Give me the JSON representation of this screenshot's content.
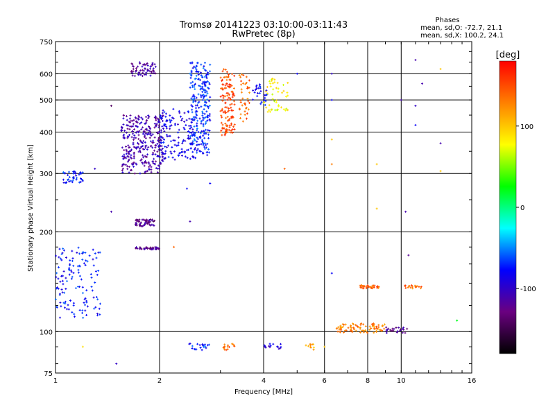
{
  "chart_data": {
    "type": "scatter",
    "title": "Tromsø 20141223 03:10:00-03:11:43",
    "subtitle": "RwPretec (8p)",
    "xlabel": "Frequency [MHz]",
    "ylabel": "Stationary phase Virtual Height [km]",
    "x_scale": "log",
    "y_scale": "log",
    "xlim": [
      1,
      16
    ],
    "ylim": [
      75,
      750
    ],
    "x_ticks": [
      1,
      2,
      4,
      6,
      8,
      10,
      16
    ],
    "y_ticks": [
      75,
      100,
      200,
      300,
      400,
      500,
      600,
      750
    ],
    "grid": true,
    "legend": {
      "title": "Phases",
      "lines": [
        "mean, sd,O: -72.7, 21.1",
        "mean, sd,X: 100.2, 24.1"
      ],
      "placement": "top-right"
    },
    "colorbar": {
      "label": "[deg]",
      "range": [
        -180,
        180
      ],
      "ticks": [
        100,
        0,
        -100
      ],
      "colors": [
        "#000000",
        "#6a0080",
        "#0000ff",
        "#00ffff",
        "#00ff00",
        "#ffff00",
        "#ff8000",
        "#ff0000"
      ]
    },
    "clusters": [
      {
        "x": [
          1.55,
          2.05
        ],
        "y": [
          300,
          450
        ],
        "n": 320,
        "phase": -110
      },
      {
        "x": [
          1.65,
          1.95
        ],
        "y": [
          590,
          650
        ],
        "n": 60,
        "phase": -115
      },
      {
        "x": [
          2.0,
          2.55
        ],
        "y": [
          330,
          470
        ],
        "n": 140,
        "phase": -85
      },
      {
        "x": [
          2.45,
          2.8
        ],
        "y": [
          340,
          650
        ],
        "n": 240,
        "phase": -70
      },
      {
        "x": [
          3.0,
          3.3
        ],
        "y": [
          390,
          620
        ],
        "n": 130,
        "phase": 150
      },
      {
        "x": [
          3.4,
          3.65
        ],
        "y": [
          430,
          600
        ],
        "n": 40,
        "phase": 140
      },
      {
        "x": [
          3.7,
          4.1
        ],
        "y": [
          480,
          560
        ],
        "n": 30,
        "phase": -80
      },
      {
        "x": [
          4.0,
          4.7
        ],
        "y": [
          460,
          580
        ],
        "n": 50,
        "phase": 80
      },
      {
        "x": [
          1.05,
          1.2
        ],
        "y": [
          280,
          305
        ],
        "n": 40,
        "phase": -75
      },
      {
        "x": [
          1.0,
          1.35
        ],
        "y": [
          110,
          180
        ],
        "n": 130,
        "phase": -75
      },
      {
        "x": [
          1.7,
          1.95
        ],
        "y": [
          208,
          218
        ],
        "n": 60,
        "phase": -125
      },
      {
        "x": [
          1.7,
          2.0
        ],
        "y": [
          177,
          180
        ],
        "n": 40,
        "phase": -120
      },
      {
        "x": [
          6.5,
          9.0
        ],
        "y": [
          99,
          106
        ],
        "n": 80,
        "phase": 130
      },
      {
        "x": [
          7.6,
          8.7
        ],
        "y": [
          135,
          138
        ],
        "n": 35,
        "phase": 140
      },
      {
        "x": [
          10.2,
          11.5
        ],
        "y": [
          135,
          138
        ],
        "n": 20,
        "phase": 140
      },
      {
        "x": [
          2.4,
          2.8
        ],
        "y": [
          88,
          92
        ],
        "n": 20,
        "phase": -70
      },
      {
        "x": [
          3.0,
          3.3
        ],
        "y": [
          88,
          92
        ],
        "n": 15,
        "phase": 140
      },
      {
        "x": [
          4.0,
          4.5
        ],
        "y": [
          88,
          92
        ],
        "n": 15,
        "phase": -90
      },
      {
        "x": [
          5.3,
          5.6
        ],
        "y": [
          88,
          92
        ],
        "n": 10,
        "phase": 110
      },
      {
        "x": [
          9.0,
          10.5
        ],
        "y": [
          99,
          103
        ],
        "n": 25,
        "phase": -120
      }
    ],
    "points": [
      {
        "x": 1.45,
        "y": 480,
        "phase": -140
      },
      {
        "x": 1.45,
        "y": 230,
        "phase": -110
      },
      {
        "x": 1.3,
        "y": 310,
        "phase": -100
      },
      {
        "x": 1.2,
        "y": 90,
        "phase": 90
      },
      {
        "x": 1.5,
        "y": 80,
        "phase": -100
      },
      {
        "x": 2.8,
        "y": 280,
        "phase": -80
      },
      {
        "x": 2.4,
        "y": 270,
        "phase": -80
      },
      {
        "x": 2.45,
        "y": 215,
        "phase": -110
      },
      {
        "x": 2.2,
        "y": 180,
        "phase": 140
      },
      {
        "x": 4.6,
        "y": 310,
        "phase": 140
      },
      {
        "x": 6.3,
        "y": 600,
        "phase": -100
      },
      {
        "x": 6.3,
        "y": 500,
        "phase": -80
      },
      {
        "x": 6.3,
        "y": 380,
        "phase": 100
      },
      {
        "x": 6.3,
        "y": 320,
        "phase": 130
      },
      {
        "x": 6.3,
        "y": 150,
        "phase": -80
      },
      {
        "x": 8.5,
        "y": 320,
        "phase": 100
      },
      {
        "x": 8.5,
        "y": 235,
        "phase": 100
      },
      {
        "x": 10.3,
        "y": 230,
        "phase": -110
      },
      {
        "x": 10.0,
        "y": 500,
        "phase": -110
      },
      {
        "x": 11.0,
        "y": 660,
        "phase": -110
      },
      {
        "x": 11.0,
        "y": 480,
        "phase": -100
      },
      {
        "x": 11.5,
        "y": 560,
        "phase": -110
      },
      {
        "x": 13.0,
        "y": 620,
        "phase": 100
      },
      {
        "x": 13.0,
        "y": 370,
        "phase": -110
      },
      {
        "x": 13.0,
        "y": 305,
        "phase": 100
      },
      {
        "x": 11.0,
        "y": 420,
        "phase": -80
      },
      {
        "x": 10.5,
        "y": 170,
        "phase": -120
      },
      {
        "x": 14.5,
        "y": 108,
        "phase": 20
      },
      {
        "x": 5.0,
        "y": 600,
        "phase": -80
      },
      {
        "x": 6.0,
        "y": 90,
        "phase": 100
      }
    ]
  }
}
